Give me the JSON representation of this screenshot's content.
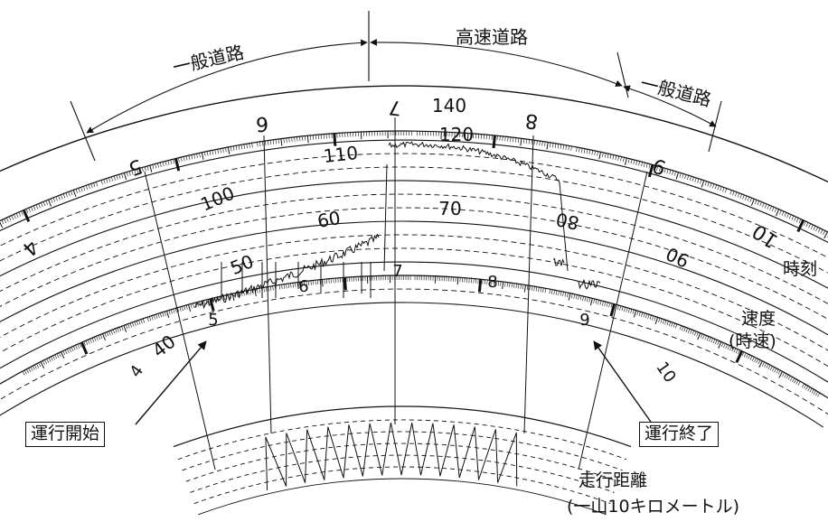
{
  "sections": {
    "general_left": "一般道路",
    "expressway": "高速道路",
    "general_right": "一般道路"
  },
  "time_scale": {
    "outer_hours": [
      "4",
      "5",
      "6",
      "7",
      "8",
      "9",
      "10"
    ],
    "inner_hours": [
      "4",
      "5",
      "6",
      "7",
      "8",
      "9",
      "10"
    ]
  },
  "speed_scale": {
    "labels": [
      "40",
      "50",
      "60",
      "70",
      "80",
      "90",
      "100",
      "110",
      "120",
      "140"
    ]
  },
  "legend": {
    "time": "時刻",
    "speed_line1": "速度",
    "speed_line2": "(時速)",
    "distance_line1": "走行距離",
    "distance_line2": "(一山10キロメートル)"
  },
  "callouts": {
    "start": "運行開始",
    "end": "運行終了"
  },
  "colors": {
    "ink": "#111111",
    "background": "#ffffff"
  }
}
